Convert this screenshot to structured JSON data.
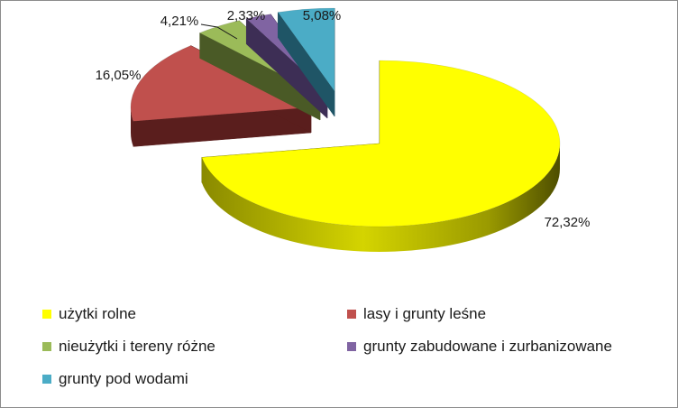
{
  "chart_data": {
    "type": "pie",
    "title": "",
    "legend_position": "bottom",
    "slices": [
      {
        "name": "użytki rolne",
        "value": 72.32,
        "label": "72,32%",
        "color": "#ffff00"
      },
      {
        "name": "lasy i grunty leśne",
        "value": 16.05,
        "label": "16,05%",
        "color": "#c0504d"
      },
      {
        "name": "nieużytki i tereny różne",
        "value": 4.21,
        "label": "4,21%",
        "color": "#9bbb59"
      },
      {
        "name": "grunty zabudowane i zurbanizowane",
        "value": 2.33,
        "label": "2,33%",
        "color": "#8064a2"
      },
      {
        "name": "grunty pod wodami",
        "value": 5.08,
        "label": "5,08%",
        "color": "#4bacc6"
      }
    ]
  }
}
